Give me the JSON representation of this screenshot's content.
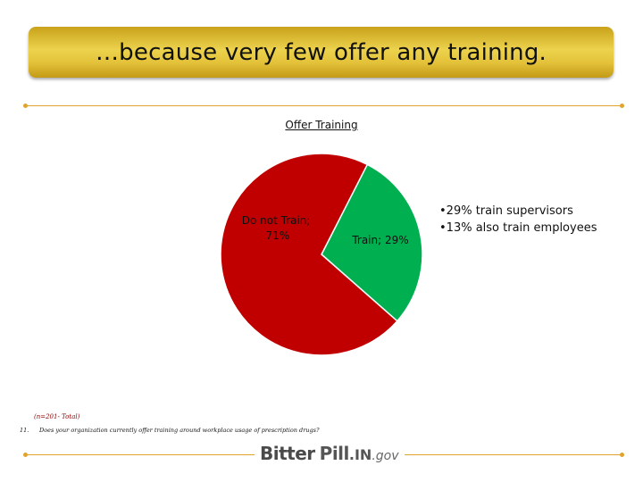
{
  "header": {
    "title": "…because very few offer any training."
  },
  "chart_data": {
    "type": "pie",
    "title": "Offer Training",
    "slices": [
      {
        "label": "Do not Train; 71%",
        "value": 71,
        "color": "#c00000"
      },
      {
        "label": "Train; 29%",
        "value": 29,
        "color": "#00b050"
      }
    ]
  },
  "bullets": [
    "29% train supervisors",
    "13% also train employees"
  ],
  "footnote": {
    "sample": "(n=201- Total)",
    "question_number": "11.",
    "question": "Does your organization currently offer training around workplace usage of prescription drugs?"
  },
  "logo": {
    "bitter": "Bitter",
    "pill": "Pill",
    "in": ".IN",
    "gov": ".gov"
  },
  "colors": {
    "gold": "#e4c33a",
    "rule": "#e0a42e"
  }
}
